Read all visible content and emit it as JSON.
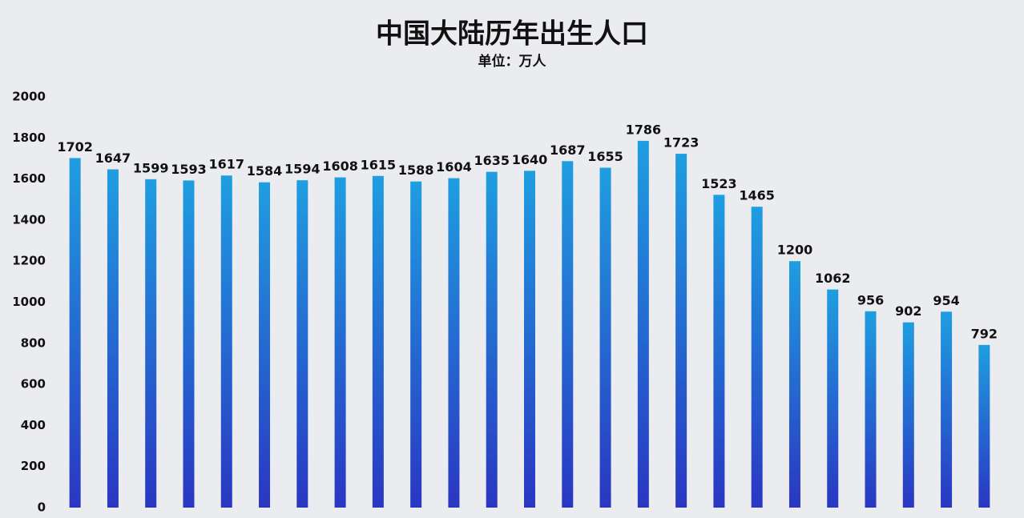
{
  "chart_data": {
    "type": "bar",
    "title": "中国大陆历年出生人口",
    "subtitle": "单位：万人",
    "categories": [
      null,
      null,
      null,
      null,
      null,
      null,
      null,
      null,
      null,
      null,
      null,
      null,
      null,
      null,
      null,
      null,
      null,
      null,
      null,
      null,
      null,
      null,
      null,
      null,
      null
    ],
    "values": [
      1702,
      1647,
      1599,
      1593,
      1617,
      1584,
      1594,
      1608,
      1615,
      1588,
      1604,
      1635,
      1640,
      1687,
      1655,
      1786,
      1723,
      1523,
      1465,
      1200,
      1062,
      956,
      902,
      954,
      792
    ],
    "color": [
      "#1f9ee0",
      "#2a36c2"
    ],
    "ylim": [
      0,
      2000
    ],
    "yticks": [
      0,
      200,
      400,
      600,
      800,
      1000,
      1200,
      1400,
      1600,
      1800,
      2000
    ],
    "grid": false
  }
}
